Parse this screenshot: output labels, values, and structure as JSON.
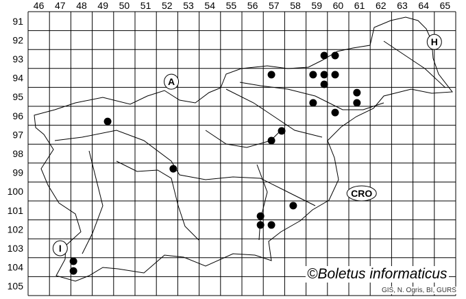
{
  "map": {
    "columns": [
      "46",
      "47",
      "48",
      "49",
      "50",
      "51",
      "52",
      "53",
      "54",
      "55",
      "56",
      "57",
      "58",
      "59",
      "60",
      "61",
      "62",
      "63",
      "64",
      "65"
    ],
    "rows": [
      "91",
      "92",
      "93",
      "94",
      "95",
      "96",
      "97",
      "98",
      "99",
      "100",
      "101",
      "102",
      "103",
      "104",
      "105"
    ],
    "country_labels": [
      {
        "text": "A",
        "col": 52.7,
        "row": 94.7
      },
      {
        "text": "CRO",
        "col": 61.6,
        "row": 100.6
      },
      {
        "text": "H",
        "col": 65.0,
        "row": 92.6
      },
      {
        "text": "I",
        "col": 47.5,
        "row": 103.5
      }
    ],
    "records": [
      {
        "col": 59.85,
        "row": 93.32
      },
      {
        "col": 60.36,
        "row": 93.32
      },
      {
        "col": 57.38,
        "row": 94.33
      },
      {
        "col": 59.33,
        "row": 94.33
      },
      {
        "col": 59.85,
        "row": 94.33
      },
      {
        "col": 60.36,
        "row": 94.33
      },
      {
        "col": 59.85,
        "row": 94.84
      },
      {
        "col": 61.38,
        "row": 95.28
      },
      {
        "col": 61.38,
        "row": 95.82
      },
      {
        "col": 59.33,
        "row": 95.82
      },
      {
        "col": 60.36,
        "row": 96.33
      },
      {
        "col": 57.86,
        "row": 97.3
      },
      {
        "col": 57.38,
        "row": 97.81
      },
      {
        "col": 49.72,
        "row": 96.8
      },
      {
        "col": 52.79,
        "row": 99.3
      },
      {
        "col": 58.4,
        "row": 101.25
      },
      {
        "col": 56.87,
        "row": 101.8
      },
      {
        "col": 56.87,
        "row": 102.27
      },
      {
        "col": 57.38,
        "row": 102.27
      },
      {
        "col": 48.12,
        "row": 104.19
      },
      {
        "col": 48.12,
        "row": 104.7
      }
    ],
    "dot_color": "#000000"
  },
  "copyright": "©Boletus informaticus",
  "credit": "GIS, N. Ogris, BI, GURS"
}
